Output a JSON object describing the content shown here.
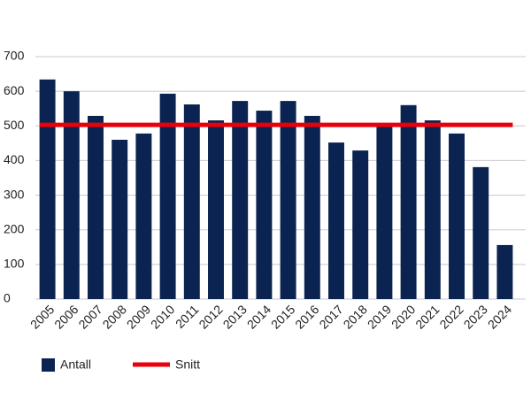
{
  "chart_data": {
    "type": "bar",
    "categories": [
      "2005",
      "2006",
      "2007",
      "2008",
      "2009",
      "2010",
      "2011",
      "2012",
      "2013",
      "2014",
      "2015",
      "2016",
      "2017",
      "2018",
      "2019",
      "2020",
      "2021",
      "2022",
      "2023",
      "2024"
    ],
    "series": [
      {
        "name": "Antall",
        "type": "bar",
        "color": "#0b2350",
        "values": [
          634,
          600,
          529,
          460,
          478,
          593,
          562,
          516,
          572,
          544,
          572,
          529,
          452,
          429,
          503,
          560,
          516,
          478,
          381,
          156
        ]
      },
      {
        "name": "Snitt",
        "type": "line",
        "color": "#e8000b",
        "values": [
          503,
          503,
          503,
          503,
          503,
          503,
          503,
          503,
          503,
          503,
          503,
          503,
          503,
          503,
          503,
          503,
          503,
          503,
          503,
          503
        ]
      }
    ],
    "ylim": [
      0,
      700
    ],
    "yticks": [
      0,
      100,
      200,
      300,
      400,
      500,
      600,
      700
    ],
    "grid": true
  }
}
